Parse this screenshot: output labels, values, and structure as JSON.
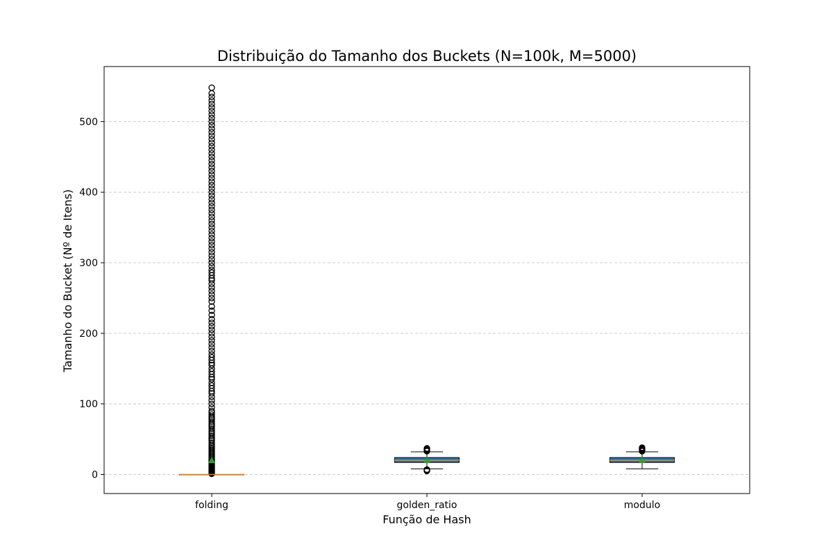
{
  "chart_data": {
    "type": "box",
    "title": "Distribuição do Tamanho dos Buckets (N=100k, M=5000)",
    "xlabel": "Função de Hash",
    "ylabel": "Tamanho do Bucket (Nº de Itens)",
    "ylim": [
      -27,
      578
    ],
    "yticks": [
      0,
      100,
      200,
      300,
      400,
      500
    ],
    "grid": {
      "y": true,
      "x": false,
      "style": "dashed"
    },
    "categories": [
      "folding",
      "golden_ratio",
      "modulo"
    ],
    "boxes": [
      {
        "category": "folding",
        "q1": 0,
        "median": 0,
        "q3": 0,
        "whisker_low": 0,
        "whisker_high": 0,
        "mean": 20,
        "fill": "#1f77b4",
        "outliers": [
          1,
          2,
          3,
          4,
          5,
          6,
          7,
          8,
          9,
          10,
          11,
          12,
          13,
          14,
          15,
          16,
          17,
          18,
          19,
          20,
          22,
          24,
          26,
          28,
          30,
          32,
          34,
          36,
          38,
          40,
          42,
          45,
          48,
          50,
          52,
          55,
          58,
          60,
          62,
          65,
          68,
          70,
          72,
          75,
          78,
          80,
          82,
          85,
          88,
          90,
          95,
          100,
          105,
          110,
          115,
          118,
          122,
          126,
          130,
          135,
          138,
          142,
          146,
          150,
          155,
          158,
          162,
          166,
          170,
          175,
          180,
          185,
          190,
          195,
          200,
          205,
          210,
          215,
          220,
          226,
          232,
          238,
          245,
          250,
          255,
          260,
          265,
          270,
          275,
          278,
          282,
          286,
          290,
          295,
          300,
          305,
          310,
          315,
          320,
          325,
          330,
          335,
          340,
          345,
          350,
          355,
          360,
          365,
          370,
          375,
          380,
          385,
          390,
          395,
          400,
          405,
          410,
          415,
          420,
          425,
          430,
          435,
          440,
          445,
          450,
          455,
          460,
          465,
          470,
          475,
          480,
          485,
          490,
          495,
          500,
          505,
          510,
          515,
          520,
          525,
          530,
          535,
          540,
          548
        ]
      },
      {
        "category": "golden_ratio",
        "q1": 17,
        "median": 20,
        "q3": 24,
        "whisker_low": 8,
        "whisker_high": 32,
        "mean": 20,
        "fill": "#1f77b4",
        "outliers": [
          5,
          6,
          7,
          33,
          34,
          35,
          36,
          37
        ]
      },
      {
        "category": "modulo",
        "q1": 17,
        "median": 20,
        "q3": 24,
        "whisker_low": 8,
        "whisker_high": 32,
        "mean": 20,
        "fill": "#1f77b4",
        "outliers": [
          33,
          34,
          35,
          36,
          37,
          38
        ]
      }
    ],
    "colors": {
      "box_fill": "#1f77b4",
      "median_line": "#ff7f0e",
      "mean_marker": "#2ca02c",
      "outlier_edge": "#000000",
      "grid": "#cccccc"
    }
  }
}
